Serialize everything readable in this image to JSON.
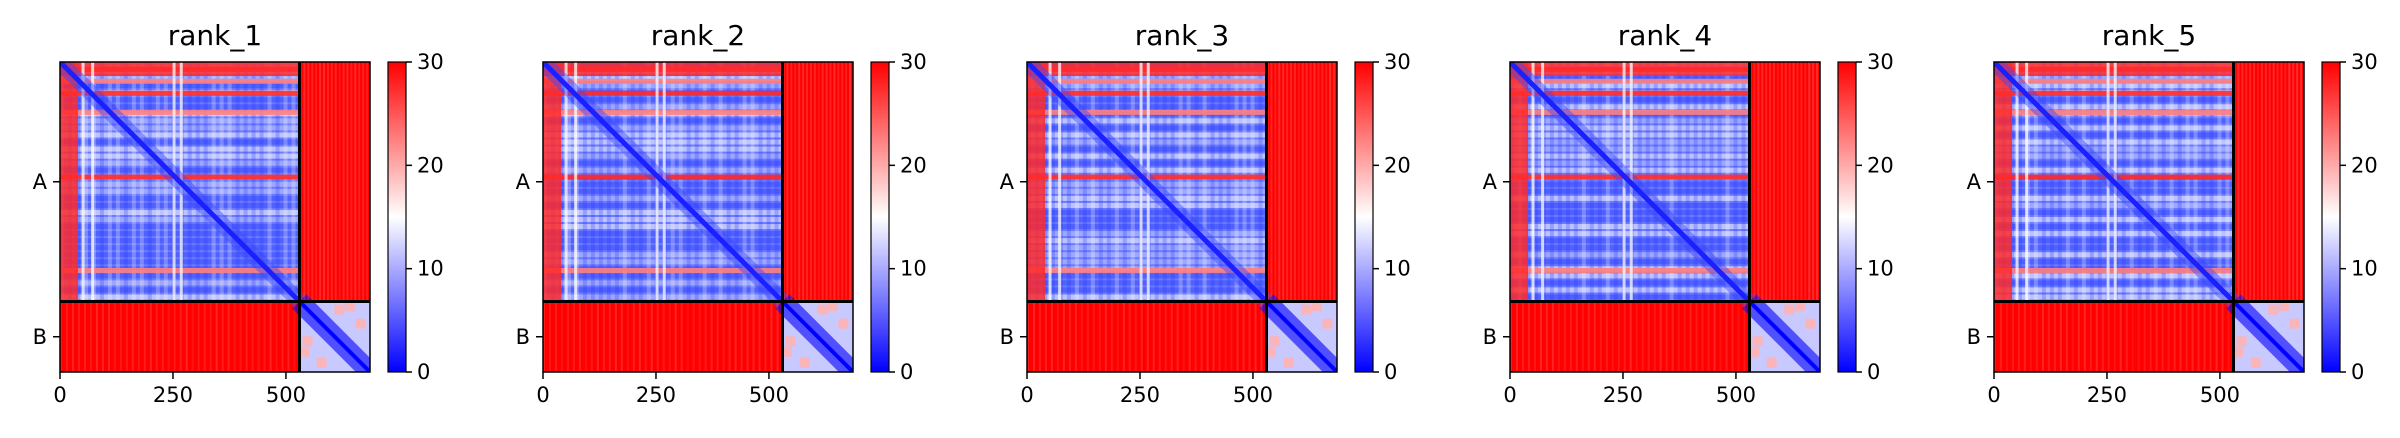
{
  "chart_data": [
    {
      "type": "heatmap",
      "title": "rank_1",
      "xticks": [
        0,
        250,
        500
      ],
      "xlim": [
        0,
        686
      ],
      "ylim": [
        686,
        0
      ],
      "yticks": [
        "A",
        "B"
      ],
      "chain_boundary": 530,
      "colorbar": {
        "min": 0,
        "max": 30,
        "ticks": [
          0,
          10,
          20,
          30
        ],
        "colors": [
          "#0000ff",
          "#ffffff",
          "#ff0000"
        ]
      }
    },
    {
      "type": "heatmap",
      "title": "rank_2",
      "xticks": [
        0,
        250,
        500
      ],
      "xlim": [
        0,
        686
      ],
      "ylim": [
        686,
        0
      ],
      "yticks": [
        "A",
        "B"
      ],
      "chain_boundary": 530,
      "colorbar": {
        "min": 0,
        "max": 30,
        "ticks": [
          0,
          10,
          20,
          30
        ],
        "colors": [
          "#0000ff",
          "#ffffff",
          "#ff0000"
        ]
      }
    },
    {
      "type": "heatmap",
      "title": "rank_3",
      "xticks": [
        0,
        250,
        500
      ],
      "xlim": [
        0,
        686
      ],
      "ylim": [
        686,
        0
      ],
      "yticks": [
        "A",
        "B"
      ],
      "chain_boundary": 530,
      "colorbar": {
        "min": 0,
        "max": 30,
        "ticks": [
          0,
          10,
          20,
          30
        ],
        "colors": [
          "#0000ff",
          "#ffffff",
          "#ff0000"
        ]
      }
    },
    {
      "type": "heatmap",
      "title": "rank_4",
      "xticks": [
        0,
        250,
        500
      ],
      "xlim": [
        0,
        686
      ],
      "ylim": [
        686,
        0
      ],
      "yticks": [
        "A",
        "B"
      ],
      "chain_boundary": 530,
      "colorbar": {
        "min": 0,
        "max": 30,
        "ticks": [
          0,
          10,
          20,
          30
        ],
        "colors": [
          "#0000ff",
          "#ffffff",
          "#ff0000"
        ]
      }
    },
    {
      "type": "heatmap",
      "title": "rank_5",
      "xticks": [
        0,
        250,
        500
      ],
      "xlim": [
        0,
        686
      ],
      "ylim": [
        686,
        0
      ],
      "yticks": [
        "A",
        "B"
      ],
      "chain_boundary": 530,
      "colorbar": {
        "min": 0,
        "max": 30,
        "ticks": [
          0,
          10,
          20,
          30
        ],
        "colors": [
          "#0000ff",
          "#ffffff",
          "#ff0000"
        ]
      }
    }
  ]
}
